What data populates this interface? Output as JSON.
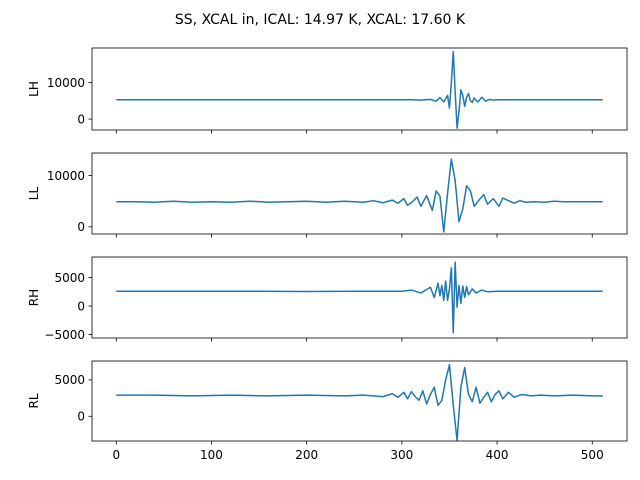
{
  "figure": {
    "title": "SS, XCAL in, ICAL: 14.97 K, XCAL: 17.60 K",
    "line_color": "#1f77b4",
    "xlim": [
      -25.5,
      536.5
    ],
    "x_ticks": [
      0,
      100,
      200,
      300,
      400,
      500
    ],
    "x_tick_labels": [
      "0",
      "100",
      "200",
      "300",
      "400",
      "500"
    ],
    "x_axis_shared": true,
    "x_tick_labels_only_on_bottom_panel": true,
    "grid": false,
    "legend": "none"
  },
  "chart_data": [
    {
      "type": "line",
      "ylabel": "LH",
      "ylim": [
        -3000,
        19500
      ],
      "y_ticks": [
        0,
        10000
      ],
      "y_tick_labels": [
        "0",
        "10000"
      ],
      "series": [
        {
          "x": [
            0,
            100,
            200,
            280,
            300,
            310,
            320,
            330,
            336,
            340,
            344,
            348,
            350,
            352,
            354,
            356,
            358,
            360,
            362,
            364,
            366,
            368,
            370,
            372,
            374,
            376,
            378,
            380,
            384,
            388,
            392,
            396,
            400,
            410,
            420,
            440,
            460,
            480,
            500,
            511
          ],
          "values": [
            5300,
            5300,
            5300,
            5300,
            5300,
            5300,
            5200,
            5400,
            4900,
            5900,
            4700,
            6500,
            3000,
            10000,
            18500,
            7500,
            -2500,
            2000,
            8000,
            6500,
            3500,
            6000,
            7000,
            5000,
            4600,
            5800,
            5100,
            4700,
            6000,
            4900,
            5400,
            5200,
            5300,
            5300,
            5300,
            5300,
            5300,
            5300,
            5300,
            5300
          ]
        }
      ]
    },
    {
      "type": "line",
      "ylabel": "LL",
      "ylim": [
        -1400,
        14400
      ],
      "y_ticks": [
        0,
        10000
      ],
      "y_tick_labels": [
        "0",
        "10000"
      ],
      "series": [
        {
          "x": [
            0,
            20,
            40,
            60,
            80,
            100,
            120,
            140,
            160,
            180,
            200,
            220,
            240,
            260,
            270,
            280,
            290,
            296,
            302,
            306,
            310,
            316,
            320,
            326,
            332,
            336,
            340,
            344,
            348,
            352,
            356,
            360,
            364,
            368,
            372,
            376,
            380,
            386,
            390,
            396,
            402,
            406,
            412,
            418,
            424,
            430,
            440,
            450,
            460,
            470,
            480,
            490,
            500,
            511
          ],
          "values": [
            4900,
            4900,
            4800,
            5000,
            4800,
            4900,
            4800,
            5000,
            4800,
            4900,
            5000,
            4800,
            5000,
            4800,
            5100,
            4700,
            5200,
            4600,
            5500,
            4200,
            4700,
            5800,
            4000,
            6100,
            3200,
            7000,
            6000,
            -1000,
            6500,
            13200,
            9000,
            1000,
            3500,
            8000,
            7000,
            4000,
            5000,
            6300,
            4400,
            5500,
            4000,
            5600,
            5100,
            4600,
            5100,
            4800,
            4900,
            4800,
            5000,
            4900,
            4900,
            4900,
            4900,
            4900
          ]
        }
      ]
    },
    {
      "type": "line",
      "ylabel": "RH",
      "ylim": [
        -5600,
        8600
      ],
      "y_ticks": [
        -5000,
        0,
        5000
      ],
      "y_tick_labels": [
        "−5000",
        "0",
        "5000"
      ],
      "series": [
        {
          "x": [
            0,
            50,
            100,
            150,
            200,
            250,
            300,
            310,
            320,
            330,
            334,
            338,
            340,
            342,
            344,
            346,
            348,
            350,
            352,
            354,
            356,
            358,
            360,
            362,
            364,
            366,
            368,
            370,
            374,
            378,
            384,
            390,
            400,
            420,
            450,
            480,
            511
          ],
          "values": [
            2600,
            2600,
            2600,
            2600,
            2550,
            2600,
            2600,
            2800,
            2300,
            3300,
            1500,
            4000,
            1800,
            3600,
            1000,
            4400,
            1000,
            3000,
            6700,
            -4700,
            7700,
            -200,
            3600,
            500,
            3500,
            1500,
            3400,
            2000,
            3000,
            2300,
            2800,
            2500,
            2600,
            2600,
            2600,
            2600,
            2600
          ]
        }
      ]
    },
    {
      "type": "line",
      "ylabel": "RL",
      "ylim": [
        -3400,
        7600
      ],
      "y_ticks": [
        0,
        5000
      ],
      "y_tick_labels": [
        "0",
        "5000"
      ],
      "series": [
        {
          "x": [
            0,
            40,
            80,
            120,
            160,
            200,
            240,
            260,
            280,
            290,
            296,
            302,
            306,
            310,
            314,
            318,
            322,
            326,
            330,
            334,
            338,
            342,
            346,
            350,
            354,
            358,
            362,
            366,
            370,
            374,
            378,
            382,
            386,
            390,
            394,
            398,
            402,
            406,
            412,
            418,
            426,
            436,
            446,
            460,
            480,
            500,
            511
          ],
          "values": [
            2900,
            2900,
            2800,
            2900,
            2800,
            2900,
            2800,
            2900,
            2700,
            3100,
            2600,
            3300,
            2400,
            3400,
            2700,
            2200,
            3500,
            1700,
            3000,
            4000,
            1500,
            2200,
            5000,
            7100,
            1500,
            -3300,
            4000,
            6700,
            3000,
            2000,
            4000,
            1800,
            2600,
            3300,
            2000,
            3000,
            3500,
            2400,
            3300,
            2600,
            3000,
            2800,
            2900,
            2800,
            2900,
            2800,
            2800
          ]
        }
      ]
    }
  ]
}
